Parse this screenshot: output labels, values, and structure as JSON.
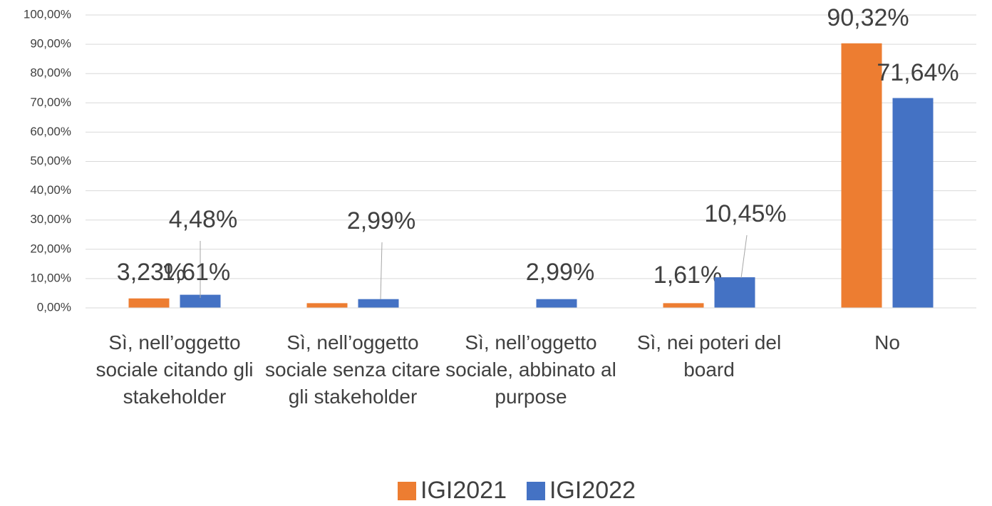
{
  "chart_data": {
    "type": "bar",
    "categories": [
      "Sì, nell’oggetto sociale citando gli stakeholder",
      "Sì, nell’oggetto sociale senza citare gli stakeholder",
      "Sì, nell’oggetto sociale, abbinato al purpose",
      "Sì, nei poteri del board",
      "No"
    ],
    "series": [
      {
        "name": "IGI2021",
        "color": "#ed7d31",
        "values": [
          3.23,
          1.61,
          null,
          1.61,
          90.32
        ],
        "value_labels": [
          "3,23%",
          "1,61%",
          null,
          "1,61%",
          "90,32%"
        ]
      },
      {
        "name": "IGI2022",
        "color": "#4472c4",
        "values": [
          4.48,
          2.99,
          2.99,
          10.45,
          71.64
        ],
        "value_labels": [
          "4,48%",
          "2,99%",
          "2,99%",
          "10,45%",
          "71,64%"
        ]
      }
    ],
    "ylim": [
      0,
      100
    ],
    "yticks": [
      {
        "value": 0,
        "label": "0,00%"
      },
      {
        "value": 10,
        "label": "10,00%"
      },
      {
        "value": 20,
        "label": "20,00%"
      },
      {
        "value": 30,
        "label": "30,00%"
      },
      {
        "value": 40,
        "label": "40,00%"
      },
      {
        "value": 50,
        "label": "50,00%"
      },
      {
        "value": 60,
        "label": "60,00%"
      },
      {
        "value": 70,
        "label": "70,00%"
      },
      {
        "value": 80,
        "label": "80,00%"
      },
      {
        "value": 90,
        "label": "90,00%"
      },
      {
        "value": 100,
        "label": "100,00%"
      }
    ],
    "grid": true,
    "legend": "bottom"
  }
}
